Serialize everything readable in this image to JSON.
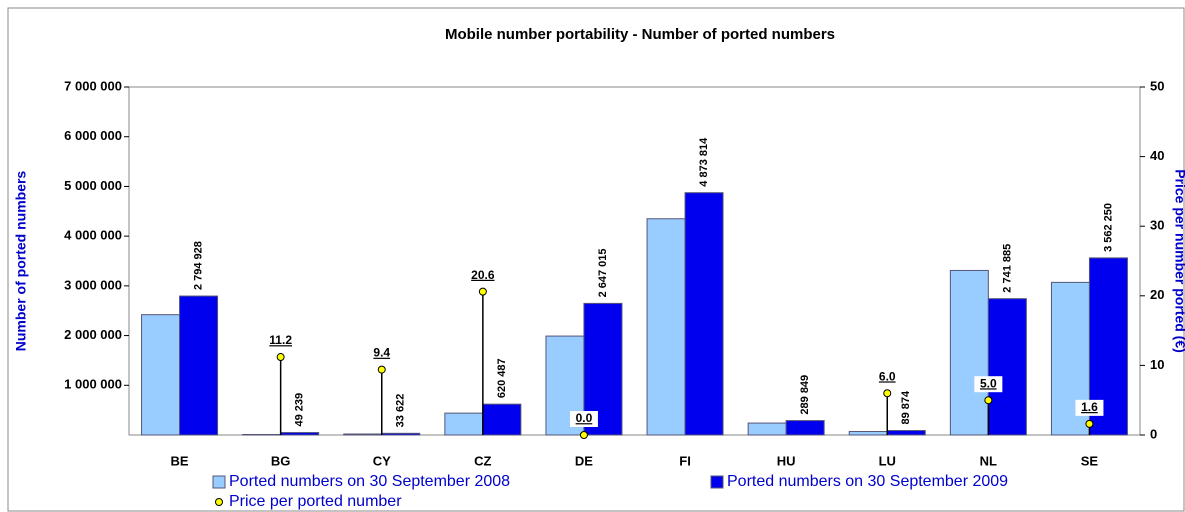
{
  "chart_data": {
    "type": "bar",
    "title": "Mobile number portability - Number of ported numbers",
    "y_label": "Number of ported numbers",
    "y2_label": "Price per number ported (€)",
    "categories": [
      "BE",
      "BG",
      "CY",
      "CZ",
      "DE",
      "FI",
      "HU",
      "LU",
      "NL",
      "SE"
    ],
    "series": [
      {
        "name": "Ported numbers on 30 September 2008",
        "color": "#99ccff",
        "values": [
          2420000,
          10000,
          20000,
          440000,
          1990000,
          4350000,
          240000,
          70000,
          3310000,
          3070000
        ]
      },
      {
        "name": "Ported numbers on 30 September 2009",
        "color": "#0000ee",
        "values": [
          2794928,
          49239,
          33622,
          620487,
          2647015,
          4873814,
          289849,
          89874,
          2741885,
          3562250
        ],
        "value_labels": [
          "2 794 928",
          "49 239",
          "33 622",
          "620 487",
          "2 647 015",
          "4 873 814",
          "289 849",
          "89 874",
          "2 741 885",
          "3 562 250"
        ]
      },
      {
        "name": "Price per ported number",
        "color": "#ffff00",
        "axis": "y2",
        "values": [
          null,
          11.2,
          9.4,
          20.6,
          0,
          null,
          null,
          6,
          5,
          1.6
        ],
        "value_labels": [
          null,
          "11.2",
          "9.4",
          "20.6",
          "0.0",
          null,
          null,
          "6.0",
          "5.0",
          "1.6"
        ]
      }
    ],
    "ylim": [
      0,
      7000000
    ],
    "yticks": [
      {
        "value": 1000000,
        "label": "1 000 000"
      },
      {
        "value": 2000000,
        "label": "2 000 000"
      },
      {
        "value": 3000000,
        "label": "3 000 000"
      },
      {
        "value": 4000000,
        "label": "4 000 000"
      },
      {
        "value": 5000000,
        "label": "5 000 000"
      },
      {
        "value": 6000000,
        "label": "6 000 000"
      },
      {
        "value": 7000000,
        "label": "7 000 000"
      }
    ],
    "y2lim": [
      0,
      50
    ],
    "y2ticks": [
      0,
      10,
      20,
      30,
      40,
      50
    ],
    "legend": "bottom",
    "grid": false
  }
}
